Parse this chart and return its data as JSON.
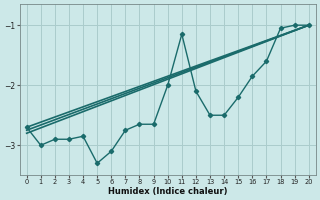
{
  "xlabel": "Humidex (Indice chaleur)",
  "ylabel": "",
  "bg_color": "#cce8e8",
  "grid_color": "#aacccc",
  "line_color": "#1a6b6b",
  "xlim": [
    -0.5,
    20.5
  ],
  "ylim": [
    -3.5,
    -0.65
  ],
  "yticks": [
    -3,
    -2,
    -1
  ],
  "xticks": [
    0,
    1,
    2,
    3,
    4,
    5,
    6,
    7,
    8,
    9,
    10,
    11,
    12,
    13,
    14,
    15,
    16,
    17,
    18,
    19,
    20
  ],
  "series": [
    {
      "x": [
        0,
        1,
        2,
        3,
        4,
        5,
        6,
        7,
        8,
        9,
        10,
        11,
        12,
        13,
        14,
        15,
        16,
        17,
        18,
        19,
        20
      ],
      "y": [
        -2.7,
        -3.0,
        -2.9,
        -2.9,
        -2.85,
        -3.3,
        -3.1,
        -2.75,
        -2.65,
        -2.65,
        -2.0,
        -1.15,
        -2.1,
        -2.5,
        -2.5,
        -2.2,
        -1.85,
        -1.6,
        -1.05,
        -1.0,
        -1.0
      ],
      "marker": "D",
      "markersize": 2.2,
      "linewidth": 1.0
    },
    {
      "x": [
        0,
        20
      ],
      "y": [
        -2.7,
        -1.0
      ],
      "marker": null,
      "linewidth": 1.2
    },
    {
      "x": [
        0,
        20
      ],
      "y": [
        -2.75,
        -1.0
      ],
      "marker": null,
      "linewidth": 1.2
    },
    {
      "x": [
        0,
        20
      ],
      "y": [
        -2.8,
        -1.0
      ],
      "marker": null,
      "linewidth": 1.2
    }
  ]
}
